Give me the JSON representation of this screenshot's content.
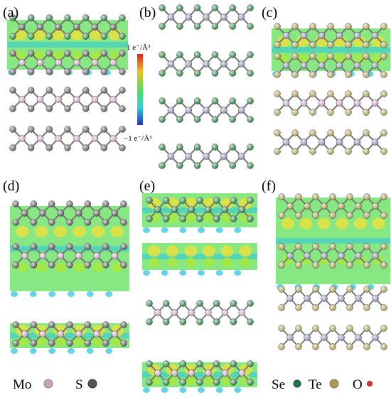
{
  "panels": [
    {
      "label": "(a)"
    },
    {
      "label": "(b)"
    },
    {
      "label": "(c)"
    },
    {
      "label": "(d)"
    },
    {
      "label": "(e)"
    },
    {
      "label": "(f)"
    }
  ],
  "colorbar": {
    "max_label": "1  e⁻/Å³",
    "min_label": "−1  e⁻/Å³"
  },
  "legend": {
    "left": [
      {
        "label": "Mo"
      },
      {
        "label": "S"
      }
    ],
    "right": [
      {
        "label": "Se"
      },
      {
        "label": "Te"
      },
      {
        "label": "O"
      }
    ]
  }
}
